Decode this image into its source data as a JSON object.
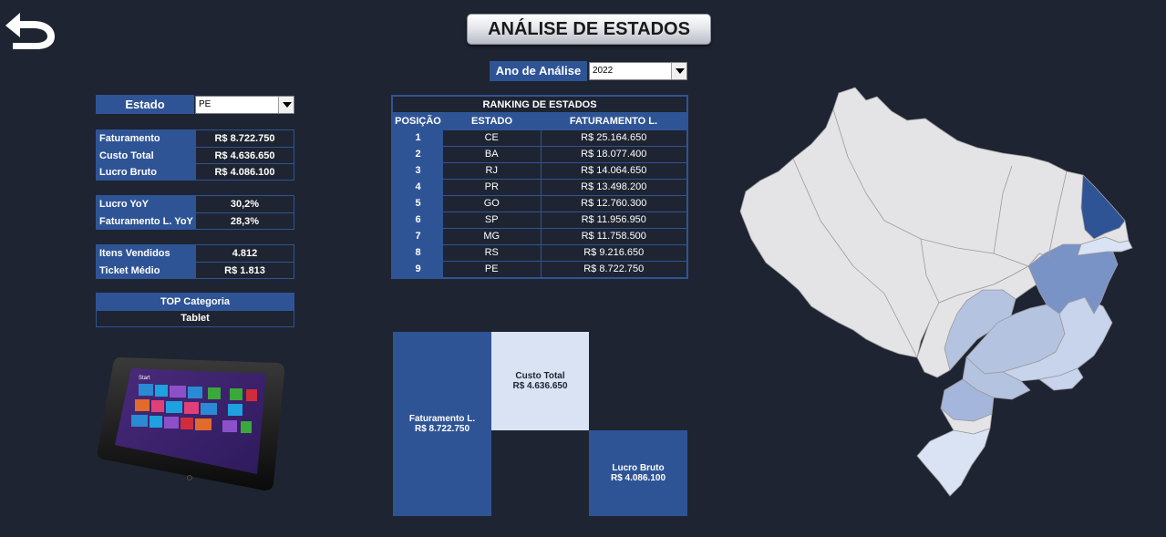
{
  "header": {
    "title": "ANÁLISE DE ESTADOS",
    "ano_label": "Ano de Análise",
    "ano_value": "2022",
    "back_icon": "back-arrow-icon"
  },
  "estado": {
    "label": "Estado",
    "value": "PE"
  },
  "kpis": {
    "group1": [
      {
        "label": "Faturamento",
        "value": "R$ 8.722.750"
      },
      {
        "label": "Custo Total",
        "value": "R$ 4.636.650"
      },
      {
        "label": "Lucro Bruto",
        "value": "R$ 4.086.100"
      }
    ],
    "group2": [
      {
        "label": "Lucro YoY",
        "value": "30,2%"
      },
      {
        "label": "Faturamento L. YoY",
        "value": "28,3%"
      }
    ],
    "group3": [
      {
        "label": "Itens Vendidos",
        "value": "4.812"
      },
      {
        "label": "Ticket Médio",
        "value": "R$ 1.813"
      }
    ]
  },
  "top_categoria": {
    "label": "TOP Categoria",
    "value": "Tablet"
  },
  "ranking": {
    "title": "RANKING DE ESTADOS",
    "headers": [
      "POSIÇÃO",
      "ESTADO",
      "FATURAMENTO L."
    ],
    "rows": [
      {
        "pos": "1",
        "estado": "CE",
        "fat": "R$ 25.164.650"
      },
      {
        "pos": "2",
        "estado": "BA",
        "fat": "R$ 18.077.400"
      },
      {
        "pos": "3",
        "estado": "RJ",
        "fat": "R$ 14.064.650"
      },
      {
        "pos": "4",
        "estado": "PR",
        "fat": "R$ 13.498.200"
      },
      {
        "pos": "5",
        "estado": "GO",
        "fat": "R$ 12.760.300"
      },
      {
        "pos": "6",
        "estado": "SP",
        "fat": "R$ 11.956.950"
      },
      {
        "pos": "7",
        "estado": "MG",
        "fat": "R$ 11.758.500"
      },
      {
        "pos": "8",
        "estado": "RS",
        "fat": "R$ 9.216.650"
      },
      {
        "pos": "9",
        "estado": "PE",
        "fat": "R$ 8.722.750"
      }
    ]
  },
  "treemap": {
    "faturamento": {
      "label": "Faturamento L.",
      "value": "R$ 8.722.750"
    },
    "custo": {
      "label": "Custo Total",
      "value": "R$ 4.636.650"
    },
    "lucro": {
      "label": "Lucro Bruto",
      "value": "R$ 4.086.100"
    }
  },
  "tablet": {
    "start_text": "Start"
  },
  "colors": {
    "background": "#1e2431",
    "accent": "#2f5496",
    "light": "#dae3f3",
    "map_base": "#e4e4e6",
    "map_highlight": "#2f5496"
  }
}
